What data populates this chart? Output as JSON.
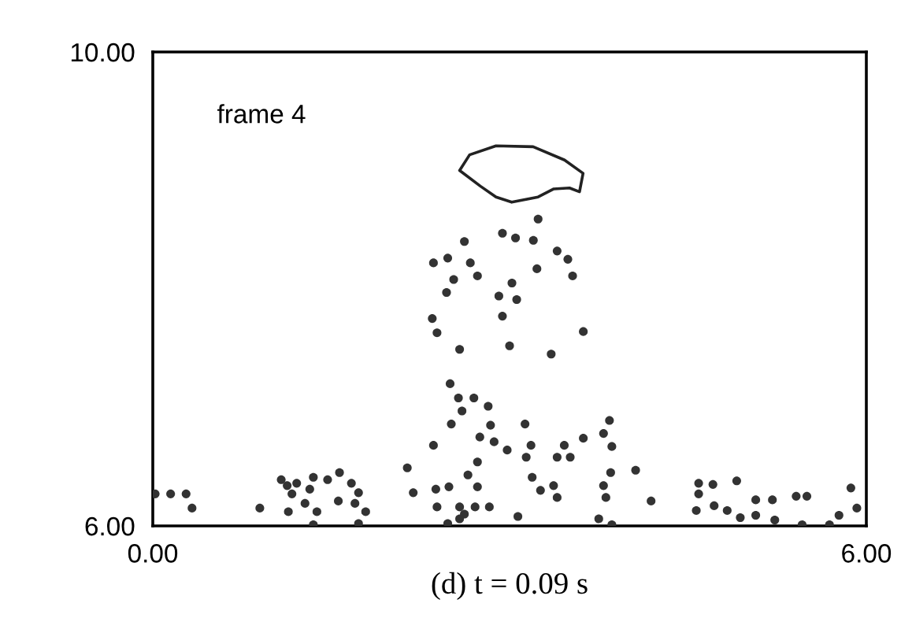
{
  "chart_data": {
    "type": "scatter",
    "xlabel": "(d) t = 0.09 s",
    "annotations": [
      "frame 4"
    ],
    "xlim": [
      0,
      6
    ],
    "ylim": [
      6,
      10
    ],
    "xticks": [
      {
        "value": 0,
        "label": "0.00"
      },
      {
        "value": 6,
        "label": "6.00"
      }
    ],
    "yticks": [
      {
        "value": 6,
        "label": "6.00"
      },
      {
        "value": 10,
        "label": "10.00"
      }
    ],
    "marker": "circle",
    "series": [
      {
        "color": "#333333",
        "x": [
          0.02,
          0.15,
          0.28,
          0.33,
          0.9,
          1.08,
          1.13,
          1.21,
          1.17,
          1.14,
          1.28,
          1.35,
          1.32,
          1.38,
          1.35,
          1.47,
          1.57,
          1.56,
          1.67,
          1.73,
          1.7,
          1.79,
          1.73,
          2.14,
          2.19,
          2.36,
          2.38,
          2.39,
          2.49,
          2.5,
          2.57,
          2.51,
          2.6,
          2.7,
          2.82,
          2.84,
          2.75,
          2.87,
          2.98,
          3.13,
          3.18,
          3.14,
          2.73,
          2.65,
          2.73,
          2.58,
          2.62,
          2.71,
          2.83,
          2.48,
          2.58,
          3.07,
          3.19,
          3.26,
          3.37,
          3.4,
          3.4,
          3.46,
          3.51,
          3.62,
          3.79,
          3.84,
          3.86,
          3.85,
          3.79,
          3.81,
          3.75,
          3.86,
          4.06,
          4.19,
          3.24,
          2.94,
          3.05,
          3.2,
          2.62,
          2.36,
          2.48,
          2.67,
          2.73,
          2.53,
          2.47,
          2.91,
          3.02,
          3.06,
          2.94,
          3.4,
          3.49,
          3.53,
          3.23,
          2.35,
          2.39,
          2.58,
          3.0,
          3.35,
          3.62,
          4.59,
          4.71,
          4.91,
          4.59,
          4.57,
          4.72,
          4.83,
          4.94,
          5.07,
          5.21,
          5.07,
          5.23,
          5.41,
          5.5,
          5.46,
          5.69,
          5.77,
          5.87,
          5.92
        ],
        "values": [
          6.27,
          6.27,
          6.27,
          6.15,
          6.15,
          6.39,
          6.34,
          6.36,
          6.27,
          6.12,
          6.19,
          6.41,
          6.31,
          6.12,
          6.01,
          6.39,
          6.45,
          6.21,
          6.36,
          6.28,
          6.19,
          6.12,
          6.02,
          6.49,
          6.28,
          6.68,
          6.31,
          6.16,
          6.33,
          7.2,
          7.08,
          6.86,
          6.97,
          7.08,
          7.01,
          6.85,
          6.75,
          6.71,
          6.64,
          6.86,
          6.68,
          6.58,
          6.54,
          6.43,
          6.33,
          6.16,
          6.1,
          6.16,
          6.16,
          6.02,
          6.06,
          6.08,
          6.41,
          6.3,
          6.34,
          6.24,
          6.58,
          6.68,
          6.58,
          6.74,
          6.78,
          6.89,
          6.67,
          6.45,
          6.34,
          6.24,
          6.06,
          6.01,
          6.47,
          6.21,
          8.59,
          8.47,
          8.43,
          8.41,
          8.4,
          8.22,
          8.26,
          8.22,
          8.11,
          8.08,
          7.97,
          7.94,
          8.05,
          7.91,
          7.77,
          8.32,
          8.25,
          8.11,
          8.17,
          7.75,
          7.63,
          7.49,
          7.52,
          7.45,
          7.64,
          6.36,
          6.35,
          6.38,
          6.27,
          6.13,
          6.17,
          6.13,
          6.07,
          6.22,
          6.22,
          6.09,
          6.05,
          6.25,
          6.25,
          6.01,
          6.01,
          6.09,
          6.32,
          6.15
        ]
      }
    ]
  }
}
